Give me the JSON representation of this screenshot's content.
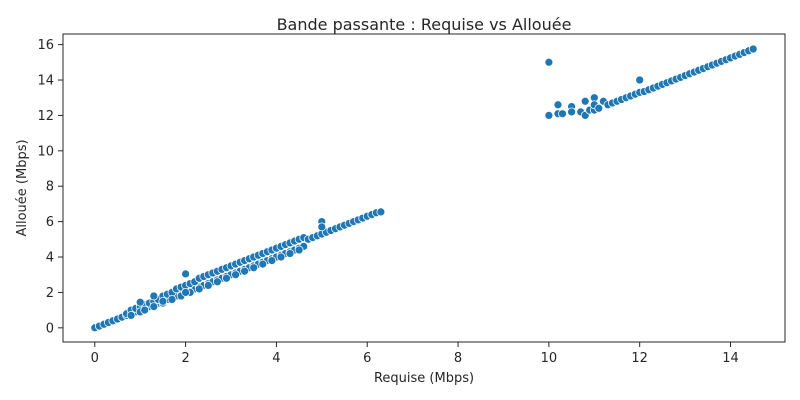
{
  "chart_data": {
    "type": "scatter",
    "title": "Bande passante : Requise vs Allouée",
    "xlabel": "Requise (Mbps)",
    "ylabel": "Allouée (Mbps)",
    "xlim": [
      -0.7,
      15.2
    ],
    "ylim": [
      -0.8,
      16.6
    ],
    "xticks": [
      0,
      2,
      4,
      6,
      8,
      10,
      12,
      14
    ],
    "yticks": [
      0,
      2,
      4,
      6,
      8,
      10,
      12,
      14,
      16
    ],
    "grid": false,
    "legend": "none",
    "color": "#1f77b4",
    "points": [
      [
        0.0,
        0.0
      ],
      [
        0.1,
        0.1
      ],
      [
        0.2,
        0.2
      ],
      [
        0.3,
        0.3
      ],
      [
        0.4,
        0.4
      ],
      [
        0.5,
        0.5
      ],
      [
        0.6,
        0.6
      ],
      [
        0.7,
        0.7
      ],
      [
        0.8,
        0.8
      ],
      [
        0.9,
        0.9
      ],
      [
        1.0,
        1.0
      ],
      [
        1.1,
        1.1
      ],
      [
        1.2,
        1.2
      ],
      [
        1.3,
        1.3
      ],
      [
        1.4,
        1.4
      ],
      [
        1.5,
        1.5
      ],
      [
        1.6,
        1.6
      ],
      [
        1.7,
        1.7
      ],
      [
        1.8,
        1.8
      ],
      [
        1.9,
        1.9
      ],
      [
        2.0,
        2.0
      ],
      [
        2.1,
        2.1
      ],
      [
        2.2,
        2.2
      ],
      [
        2.3,
        2.3
      ],
      [
        2.4,
        2.4
      ],
      [
        2.5,
        2.5
      ],
      [
        2.6,
        2.6
      ],
      [
        2.7,
        2.7
      ],
      [
        2.8,
        2.8
      ],
      [
        2.9,
        2.9
      ],
      [
        3.0,
        3.0
      ],
      [
        3.1,
        3.1
      ],
      [
        3.2,
        3.2
      ],
      [
        3.3,
        3.3
      ],
      [
        3.4,
        3.4
      ],
      [
        3.5,
        3.5
      ],
      [
        3.6,
        3.6
      ],
      [
        3.7,
        3.7
      ],
      [
        3.8,
        3.8
      ],
      [
        3.9,
        3.9
      ],
      [
        4.0,
        4.0
      ],
      [
        4.1,
        4.1
      ],
      [
        4.2,
        4.2
      ],
      [
        4.3,
        4.3
      ],
      [
        4.4,
        4.4
      ],
      [
        4.5,
        4.5
      ],
      [
        4.6,
        4.6
      ],
      [
        0.7,
        0.8
      ],
      [
        0.8,
        1.0
      ],
      [
        0.9,
        1.1
      ],
      [
        1.0,
        1.2
      ],
      [
        1.1,
        1.3
      ],
      [
        1.2,
        1.4
      ],
      [
        1.3,
        1.5
      ],
      [
        1.4,
        1.6
      ],
      [
        1.5,
        1.8
      ],
      [
        1.6,
        1.9
      ],
      [
        1.7,
        2.0
      ],
      [
        1.8,
        2.2
      ],
      [
        1.9,
        2.3
      ],
      [
        2.0,
        2.4
      ],
      [
        2.1,
        2.5
      ],
      [
        2.2,
        2.6
      ],
      [
        2.3,
        2.8
      ],
      [
        2.4,
        2.9
      ],
      [
        2.5,
        3.0
      ],
      [
        2.6,
        3.1
      ],
      [
        2.7,
        3.2
      ],
      [
        2.8,
        3.3
      ],
      [
        2.9,
        3.4
      ],
      [
        3.0,
        3.5
      ],
      [
        3.1,
        3.6
      ],
      [
        3.2,
        3.7
      ],
      [
        3.3,
        3.8
      ],
      [
        3.4,
        3.9
      ],
      [
        3.5,
        4.0
      ],
      [
        3.6,
        4.1
      ],
      [
        3.7,
        4.2
      ],
      [
        3.8,
        4.3
      ],
      [
        3.9,
        4.4
      ],
      [
        4.0,
        4.5
      ],
      [
        4.1,
        4.6
      ],
      [
        4.2,
        4.7
      ],
      [
        4.3,
        4.8
      ],
      [
        4.4,
        4.9
      ],
      [
        4.5,
        5.0
      ],
      [
        4.6,
        5.1
      ],
      [
        0.8,
        0.7
      ],
      [
        1.0,
        0.9
      ],
      [
        1.1,
        1.0
      ],
      [
        1.3,
        1.2
      ],
      [
        1.5,
        1.4
      ],
      [
        1.7,
        1.6
      ],
      [
        1.9,
        1.8
      ],
      [
        2.1,
        2.0
      ],
      [
        2.3,
        2.2
      ],
      [
        2.5,
        2.4
      ],
      [
        2.7,
        2.6
      ],
      [
        2.9,
        2.8
      ],
      [
        3.1,
        3.0
      ],
      [
        3.3,
        3.2
      ],
      [
        3.5,
        3.4
      ],
      [
        3.7,
        3.6
      ],
      [
        3.9,
        3.8
      ],
      [
        4.1,
        4.0
      ],
      [
        4.3,
        4.2
      ],
      [
        4.5,
        4.4
      ],
      [
        4.7,
        5.0
      ],
      [
        4.8,
        5.1
      ],
      [
        4.9,
        5.2
      ],
      [
        5.0,
        5.3
      ],
      [
        5.1,
        5.4
      ],
      [
        5.2,
        5.5
      ],
      [
        5.3,
        5.6
      ],
      [
        5.4,
        5.7
      ],
      [
        5.5,
        5.8
      ],
      [
        5.6,
        5.9
      ],
      [
        5.7,
        6.0
      ],
      [
        5.8,
        6.1
      ],
      [
        5.9,
        6.2
      ],
      [
        6.0,
        6.3
      ],
      [
        6.1,
        6.4
      ],
      [
        6.2,
        6.5
      ],
      [
        6.3,
        6.55
      ],
      [
        1.0,
        1.45
      ],
      [
        1.3,
        1.8
      ],
      [
        1.5,
        1.5
      ],
      [
        2.0,
        3.05
      ],
      [
        2.0,
        2.0
      ],
      [
        5.0,
        6.0
      ],
      [
        5.0,
        5.7
      ],
      [
        10.0,
        15.0
      ],
      [
        10.0,
        12.0
      ],
      [
        10.2,
        12.6
      ],
      [
        10.2,
        12.1
      ],
      [
        10.3,
        12.1
      ],
      [
        10.5,
        12.5
      ],
      [
        10.5,
        12.2
      ],
      [
        10.7,
        12.2
      ],
      [
        10.8,
        12.8
      ],
      [
        10.8,
        12.0
      ],
      [
        10.9,
        12.3
      ],
      [
        11.0,
        13.0
      ],
      [
        11.0,
        12.3
      ],
      [
        11.0,
        12.6
      ],
      [
        11.1,
        12.4
      ],
      [
        11.2,
        12.8
      ],
      [
        11.3,
        12.6
      ],
      [
        11.4,
        12.7
      ],
      [
        11.5,
        12.8
      ],
      [
        11.6,
        12.9
      ],
      [
        11.7,
        13.0
      ],
      [
        11.8,
        13.1
      ],
      [
        11.9,
        13.2
      ],
      [
        12.0,
        14.0
      ],
      [
        12.0,
        13.3
      ],
      [
        12.1,
        13.35
      ],
      [
        12.2,
        13.45
      ],
      [
        12.3,
        13.55
      ],
      [
        12.4,
        13.65
      ],
      [
        12.5,
        13.75
      ],
      [
        12.6,
        13.85
      ],
      [
        12.7,
        13.95
      ],
      [
        12.8,
        14.05
      ],
      [
        12.9,
        14.15
      ],
      [
        13.0,
        14.25
      ],
      [
        13.1,
        14.35
      ],
      [
        13.2,
        14.45
      ],
      [
        13.3,
        14.55
      ],
      [
        13.4,
        14.65
      ],
      [
        13.5,
        14.75
      ],
      [
        13.6,
        14.85
      ],
      [
        13.7,
        14.95
      ],
      [
        13.8,
        15.05
      ],
      [
        13.9,
        15.15
      ],
      [
        14.0,
        15.25
      ],
      [
        14.1,
        15.35
      ],
      [
        14.2,
        15.45
      ],
      [
        14.3,
        15.55
      ],
      [
        14.4,
        15.65
      ],
      [
        14.5,
        15.75
      ]
    ]
  }
}
